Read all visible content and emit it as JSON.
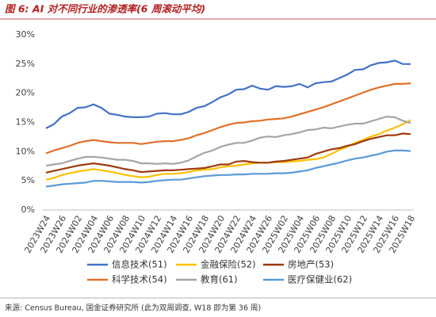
{
  "chart_data": {
    "type": "line",
    "title": "图 6: AI 对不同行业的渗透率(6 周滚动平均)",
    "source": "来源: Census Bureau, 国金证券研究所 (此为双周调查, W18 即为第 36 周)",
    "categories": [
      "2023W24",
      null,
      "2023W26",
      null,
      "2024W02",
      null,
      "2024W04",
      null,
      "2024W06",
      null,
      "2024W08",
      null,
      "2024W10",
      null,
      "2024W12",
      null,
      "2024W14",
      null,
      "2024W16",
      null,
      "2024W18",
      null,
      "2024W20",
      null,
      "2024W22",
      null,
      "2024W24",
      null,
      "2024W26",
      null,
      "2025W02",
      null,
      "2025W04",
      null,
      "2025W06",
      null,
      "2025W08",
      null,
      "2025W10",
      null,
      "2025W12",
      null,
      "2025W14",
      null,
      "2025W16",
      null,
      "2025W18"
    ],
    "ylim": [
      0,
      30
    ],
    "yticks": [
      {
        "value": 0,
        "label": "0%"
      },
      {
        "value": 5,
        "label": "5%"
      },
      {
        "value": 10,
        "label": "10%"
      },
      {
        "value": 15,
        "label": "15%"
      },
      {
        "value": 20,
        "label": "20%"
      },
      {
        "value": 25,
        "label": "25%"
      },
      {
        "value": 30,
        "label": "30%"
      }
    ],
    "grid": false,
    "series": [
      {
        "name": "信息技术(51)",
        "color": "#4472c4",
        "values": [
          14.0,
          14.7,
          16.0,
          16.6,
          17.5,
          17.6,
          18.1,
          17.5,
          16.5,
          16.3,
          16.0,
          15.9,
          15.9,
          16.0,
          16.5,
          16.6,
          16.4,
          16.4,
          16.8,
          17.5,
          17.8,
          18.5,
          19.3,
          19.8,
          20.6,
          20.7,
          21.3,
          20.8,
          20.6,
          21.2,
          21.1,
          21.2,
          21.6,
          21.0,
          21.7,
          21.9,
          22.0,
          22.6,
          23.2,
          24.0,
          24.1,
          24.8,
          25.2,
          25.3,
          25.6,
          25.0,
          25.0
        ]
      },
      {
        "name": "金融保险(52)",
        "color": "#ffc000",
        "values": [
          5.2,
          5.5,
          6.0,
          6.3,
          6.6,
          6.8,
          7.0,
          6.8,
          6.6,
          6.3,
          6.0,
          5.8,
          5.6,
          5.7,
          6.0,
          6.2,
          6.2,
          6.3,
          6.5,
          6.8,
          6.9,
          7.0,
          7.3,
          7.5,
          7.6,
          7.8,
          8.0,
          8.1,
          8.1,
          8.2,
          8.2,
          8.3,
          8.4,
          8.6,
          8.7,
          9.0,
          9.6,
          10.3,
          10.8,
          11.5,
          12.0,
          12.6,
          13.0,
          13.6,
          14.1,
          14.7,
          15.4
        ]
      },
      {
        "name": "房地产(53)",
        "color": "#9e3a0e",
        "values": [
          6.4,
          6.7,
          7.0,
          7.3,
          7.6,
          7.8,
          8.0,
          7.8,
          7.6,
          7.3,
          7.0,
          6.8,
          6.5,
          6.6,
          6.7,
          6.8,
          6.8,
          6.9,
          7.0,
          7.1,
          7.2,
          7.5,
          7.8,
          7.8,
          8.3,
          8.4,
          8.2,
          8.1,
          8.1,
          8.3,
          8.4,
          8.6,
          8.8,
          9.0,
          9.6,
          10.0,
          10.4,
          10.6,
          11.0,
          11.3,
          11.8,
          12.2,
          12.5,
          12.8,
          12.8,
          13.1,
          13.0
        ]
      },
      {
        "name": "科学技术(54)",
        "color": "#e0702a",
        "values": [
          9.7,
          10.2,
          10.6,
          11.0,
          11.5,
          11.8,
          12.0,
          11.8,
          11.6,
          11.5,
          11.5,
          11.5,
          11.3,
          11.5,
          11.7,
          11.8,
          11.8,
          12.0,
          12.3,
          12.8,
          13.2,
          13.7,
          14.2,
          14.6,
          14.9,
          15.0,
          15.2,
          15.3,
          15.5,
          15.6,
          15.7,
          16.0,
          16.4,
          16.8,
          17.2,
          17.6,
          18.1,
          18.6,
          19.1,
          19.6,
          20.1,
          20.6,
          21.0,
          21.3,
          21.6,
          21.6,
          21.7
        ]
      },
      {
        "name": "教育(61)",
        "color": "#a5a5a5",
        "values": [
          7.6,
          7.8,
          8.0,
          8.4,
          8.8,
          9.1,
          9.1,
          9.0,
          8.8,
          8.6,
          8.6,
          8.4,
          8.0,
          8.0,
          7.9,
          8.0,
          7.9,
          8.1,
          8.5,
          9.2,
          9.8,
          10.2,
          10.8,
          11.2,
          11.5,
          11.5,
          11.9,
          12.4,
          12.6,
          12.5,
          12.8,
          13.0,
          13.3,
          13.7,
          13.8,
          14.1,
          14.0,
          14.3,
          14.6,
          14.8,
          14.8,
          15.2,
          15.6,
          16.0,
          15.9,
          15.3,
          14.9
        ]
      },
      {
        "name": "医疗保健业(62)",
        "color": "#5b9bd5",
        "values": [
          4.0,
          4.2,
          4.4,
          4.5,
          4.6,
          4.7,
          5.0,
          5.0,
          4.9,
          4.8,
          4.8,
          4.8,
          4.7,
          4.8,
          5.0,
          5.1,
          5.2,
          5.2,
          5.4,
          5.6,
          5.8,
          5.9,
          6.0,
          6.0,
          6.1,
          6.1,
          6.2,
          6.2,
          6.2,
          6.3,
          6.3,
          6.4,
          6.6,
          6.8,
          7.2,
          7.5,
          7.8,
          8.1,
          8.5,
          8.8,
          9.0,
          9.3,
          9.6,
          10.0,
          10.2,
          10.2,
          10.1
        ]
      }
    ]
  }
}
